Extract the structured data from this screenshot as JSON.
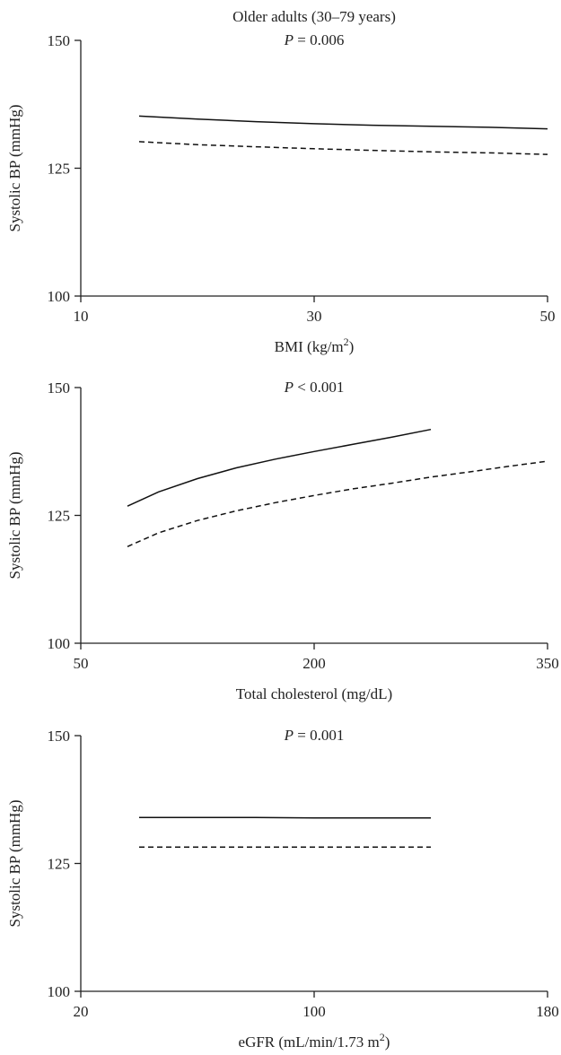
{
  "chart_data": [
    {
      "type": "line",
      "title": "Older adults (30–79 years)",
      "annotation": {
        "italic": "P",
        "rest": " = 0.006"
      },
      "xlabel": {
        "text": "BMI (kg/m",
        "sup": "2",
        "after": ")"
      },
      "ylabel": "Systolic BP (mmHg)",
      "xlim": [
        10,
        50
      ],
      "ylim": [
        100,
        150
      ],
      "xticks": [
        10,
        30,
        50
      ],
      "yticks": [
        100,
        125,
        150
      ],
      "series": [
        {
          "style": "solid",
          "x": [
            15,
            20,
            25,
            30,
            35,
            40,
            45,
            50
          ],
          "y": [
            135.2,
            134.6,
            134.1,
            133.7,
            133.4,
            133.2,
            133.0,
            132.7
          ]
        },
        {
          "style": "dashed",
          "x": [
            15,
            20,
            25,
            30,
            35,
            40,
            45,
            50
          ],
          "y": [
            130.2,
            129.6,
            129.2,
            128.8,
            128.5,
            128.2,
            128.0,
            127.7
          ]
        }
      ]
    },
    {
      "type": "line",
      "title": "",
      "annotation": {
        "italic": "P",
        "rest": " < 0.001"
      },
      "xlabel": {
        "text": "Total cholesterol (mg/dL)",
        "sup": "",
        "after": ""
      },
      "ylabel": "Systolic BP (mmHg)",
      "xlim": [
        50,
        350
      ],
      "ylim": [
        100,
        150
      ],
      "xticks": [
        50,
        200,
        350
      ],
      "yticks": [
        100,
        125,
        150
      ],
      "series": [
        {
          "style": "solid",
          "x": [
            80,
            100,
            125,
            150,
            175,
            200,
            225,
            250,
            275
          ],
          "y": [
            126.8,
            129.6,
            132.2,
            134.3,
            136.0,
            137.5,
            138.9,
            140.3,
            141.8
          ]
        },
        {
          "style": "dashed",
          "x": [
            80,
            100,
            125,
            150,
            175,
            200,
            225,
            250,
            275,
            300,
            325,
            350
          ],
          "y": [
            118.9,
            121.6,
            124.0,
            125.9,
            127.5,
            128.9,
            130.2,
            131.3,
            132.5,
            133.5,
            134.6,
            135.6
          ]
        }
      ]
    },
    {
      "type": "line",
      "title": "",
      "annotation": {
        "italic": "P",
        "rest": " = 0.001"
      },
      "xlabel": {
        "text": "eGFR (mL/min/1.73 m",
        "sup": "2",
        "after": ")"
      },
      "ylabel": "Systolic BP (mmHg)",
      "xlim": [
        20,
        180
      ],
      "ylim": [
        100,
        150
      ],
      "xticks": [
        20,
        100,
        180
      ],
      "yticks": [
        100,
        125,
        150
      ],
      "series": [
        {
          "style": "solid",
          "x": [
            40,
            60,
            80,
            100,
            120,
            140
          ],
          "y": [
            134.0,
            134.0,
            134.0,
            133.9,
            133.9,
            133.9
          ]
        },
        {
          "style": "dashed",
          "x": [
            40,
            60,
            80,
            100,
            120,
            140
          ],
          "y": [
            128.2,
            128.2,
            128.2,
            128.2,
            128.2,
            128.2
          ]
        }
      ]
    }
  ]
}
